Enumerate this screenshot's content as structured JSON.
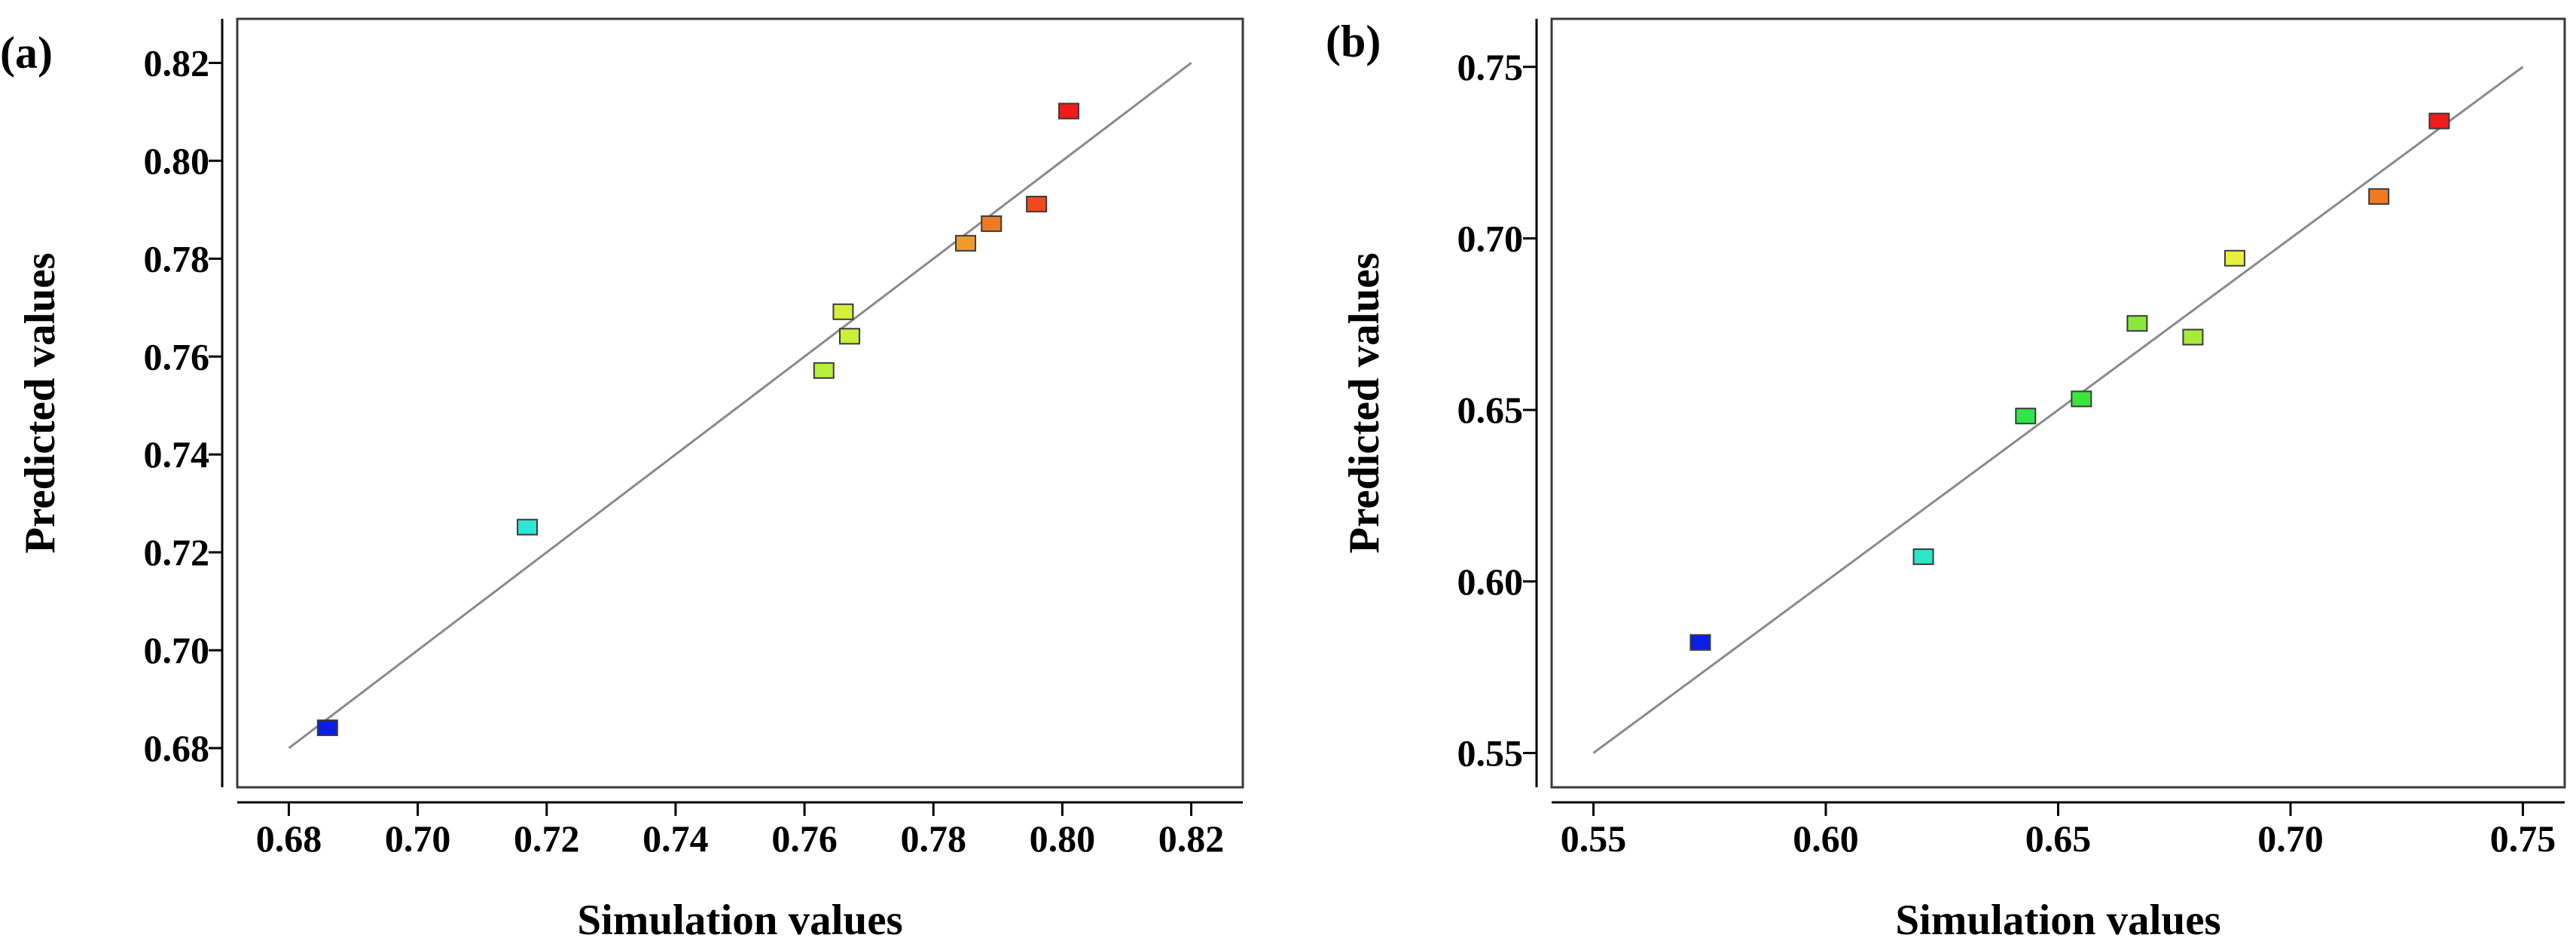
{
  "chart_data": [
    {
      "type": "scatter",
      "panel_label": "(a)",
      "xlabel": "Simulation values",
      "ylabel": "Predicted values",
      "xlim": [
        0.672,
        0.828
      ],
      "ylim": [
        0.672,
        0.829
      ],
      "xticks": [
        0.68,
        0.7,
        0.72,
        0.74,
        0.76,
        0.78,
        0.8,
        0.82
      ],
      "yticks": [
        0.68,
        0.7,
        0.72,
        0.74,
        0.76,
        0.78,
        0.8,
        0.82
      ],
      "xtick_labels": [
        "0.68",
        "0.70",
        "0.72",
        "0.74",
        "0.76",
        "0.78",
        "0.80",
        "0.82"
      ],
      "ytick_labels": [
        "0.68",
        "0.70",
        "0.72",
        "0.74",
        "0.76",
        "0.78",
        "0.80",
        "0.82"
      ],
      "reference_line": {
        "from": [
          0.68,
          0.68
        ],
        "to": [
          0.82,
          0.82
        ]
      },
      "points": [
        {
          "x": 0.686,
          "y": 0.684,
          "color": "#0a1ee6"
        },
        {
          "x": 0.717,
          "y": 0.725,
          "color": "#2ee6d6"
        },
        {
          "x": 0.763,
          "y": 0.757,
          "color": "#b8ef3a"
        },
        {
          "x": 0.766,
          "y": 0.769,
          "color": "#d4f03a"
        },
        {
          "x": 0.767,
          "y": 0.764,
          "color": "#c6f03a"
        },
        {
          "x": 0.785,
          "y": 0.783,
          "color": "#f09a28"
        },
        {
          "x": 0.789,
          "y": 0.787,
          "color": "#f07a22"
        },
        {
          "x": 0.796,
          "y": 0.791,
          "color": "#f04a1c"
        },
        {
          "x": 0.801,
          "y": 0.81,
          "color": "#f01c1c"
        }
      ]
    },
    {
      "type": "scatter",
      "panel_label": "(b)",
      "xlabel": "Simulation values",
      "ylabel": "Predicted values",
      "xlim": [
        0.541,
        0.759
      ],
      "ylim": [
        0.54,
        0.764
      ],
      "xticks": [
        0.55,
        0.6,
        0.65,
        0.7,
        0.75
      ],
      "yticks": [
        0.55,
        0.6,
        0.65,
        0.7,
        0.75
      ],
      "xtick_labels": [
        "0.55",
        "0.60",
        "0.65",
        "0.70",
        "0.75"
      ],
      "ytick_labels": [
        "0.55",
        "0.60",
        "0.65",
        "0.70",
        "0.75"
      ],
      "reference_line": {
        "from": [
          0.55,
          0.55
        ],
        "to": [
          0.75,
          0.75
        ]
      },
      "points": [
        {
          "x": 0.573,
          "y": 0.582,
          "color": "#0a1ee6"
        },
        {
          "x": 0.621,
          "y": 0.607,
          "color": "#2ee6c8"
        },
        {
          "x": 0.643,
          "y": 0.648,
          "color": "#2ee64a"
        },
        {
          "x": 0.655,
          "y": 0.653,
          "color": "#3ae63a"
        },
        {
          "x": 0.667,
          "y": 0.675,
          "color": "#8ae83a"
        },
        {
          "x": 0.679,
          "y": 0.671,
          "color": "#a6ea3a"
        },
        {
          "x": 0.688,
          "y": 0.694,
          "color": "#eaf03a"
        },
        {
          "x": 0.719,
          "y": 0.712,
          "color": "#f07a22"
        },
        {
          "x": 0.732,
          "y": 0.734,
          "color": "#f01c1c"
        }
      ]
    }
  ]
}
